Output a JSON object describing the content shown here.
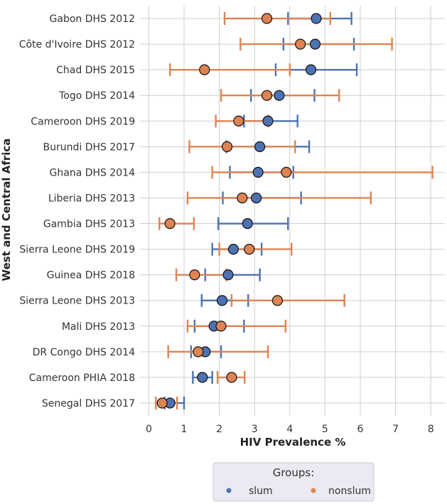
{
  "chart_data": {
    "type": "scatter",
    "subtype": "dot-with-error-bars",
    "xlabel": "HIV Prevalence %",
    "ylabel": "West and Central Africa",
    "xlim": [
      -0.25,
      8.4
    ],
    "xticks": [
      0,
      1,
      2,
      3,
      4,
      5,
      6,
      7,
      8
    ],
    "grid": true,
    "legend": {
      "title": "Groups:",
      "placement": "bottom-center"
    },
    "categories": [
      "Gabon DHS 2012",
      "Côte d'Ivoire DHS 2012",
      "Chad DHS 2015",
      "Togo DHS 2014",
      "Cameroon DHS 2019",
      "Burundi DHS 2017",
      "Ghana DHS 2014",
      "Liberia DHS 2013",
      "Gambia DHS 2013",
      "Sierra Leone DHS 2019",
      "Guinea DHS 2018",
      "Sierra Leone DHS 2013",
      "Mali DHS 2013",
      "DR Congo DHS 2014",
      "Cameroon PHIA 2018",
      "Senegal DHS 2017"
    ],
    "series": [
      {
        "name": "slum",
        "color": "#4c72b0",
        "values": [
          4.75,
          4.72,
          4.6,
          3.7,
          3.38,
          3.15,
          3.1,
          3.05,
          2.8,
          2.4,
          2.25,
          2.08,
          1.85,
          1.6,
          1.52,
          0.6
        ],
        "lower": [
          3.95,
          3.82,
          3.6,
          2.9,
          2.7,
          2.2,
          2.3,
          2.1,
          1.97,
          1.8,
          1.6,
          1.5,
          1.3,
          1.2,
          1.25,
          0.45
        ],
        "upper": [
          5.75,
          5.82,
          5.9,
          4.7,
          4.22,
          4.55,
          4.1,
          4.32,
          3.95,
          3.2,
          3.15,
          2.82,
          2.7,
          2.05,
          1.8,
          1.0
        ]
      },
      {
        "name": "nonslum",
        "color": "#dd8452",
        "values": [
          3.35,
          4.3,
          1.58,
          3.35,
          2.55,
          2.22,
          3.9,
          2.65,
          0.6,
          2.85,
          1.3,
          3.65,
          2.05,
          1.4,
          2.35,
          0.38
        ],
        "lower": [
          2.15,
          2.6,
          0.6,
          2.05,
          1.9,
          1.15,
          1.8,
          1.1,
          0.3,
          2.0,
          0.78,
          2.35,
          1.1,
          0.55,
          1.95,
          0.2
        ],
        "upper": [
          5.15,
          6.9,
          4.0,
          5.4,
          3.4,
          4.15,
          8.05,
          6.3,
          1.28,
          4.05,
          2.2,
          5.55,
          3.88,
          3.38,
          2.72,
          0.8
        ]
      }
    ]
  }
}
